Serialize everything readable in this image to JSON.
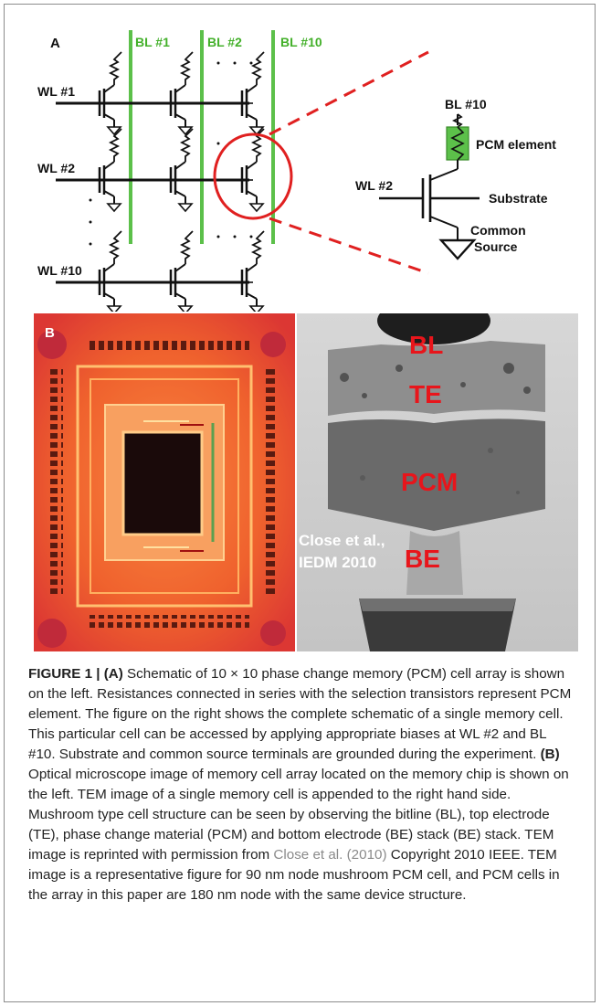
{
  "panel_a": {
    "letter": "A",
    "bitlines": [
      "BL #1",
      "BL #2",
      "BL #10"
    ],
    "wordlines": [
      "WL #1",
      "WL #2",
      "WL #10"
    ],
    "inset": {
      "bitline": "BL #10",
      "element": "PCM element",
      "wordline": "WL #2",
      "substrate": "Substrate",
      "source_line1": "Common",
      "source_line2": "Source"
    }
  },
  "panel_b": {
    "letter": "B",
    "tem_labels": [
      "BL",
      "TE",
      "PCM",
      "BE"
    ],
    "credit_line1": "Close et al.,",
    "credit_line2": "IEDM 2010"
  },
  "caption": {
    "label": "FIGURE 1 | ",
    "part_a": "(A)",
    "text_a": " Schematic of 10 × 10 phase change memory (PCM) cell array is shown on the left. Resistances connected in series with the selection transistors represent PCM element. The figure on the right shows the complete schematic of a single memory cell. This particular cell can be accessed by applying appropriate biases at WL #2 and BL #10. Substrate and common source terminals are grounded during the experiment. ",
    "part_b": "(B)",
    "text_b1": " Optical microscope image of memory cell array located on the memory chip is shown on the left. TEM image of a single memory cell is appended to the right hand side. Mushroom type cell structure can be seen by observing the bitline (BL), top electrode (TE), phase change material (PCM) and bottom electrode (BE) stack (BE) stack. TEM image is reprinted with permission from ",
    "citation": "Close et al. (2010)",
    "text_b2": " Copyright 2010 IEEE. TEM image is a representative figure for 90 nm node mushroom PCM cell, and PCM cells in the array in this paper are 180 nm node with the same device structure."
  },
  "colors": {
    "bitline_green": "#5cc04a",
    "circle_red": "#e02020",
    "label_green": "#43b02a",
    "tem_label_red": "#e8151b",
    "chip_orange": "#f26a32"
  }
}
